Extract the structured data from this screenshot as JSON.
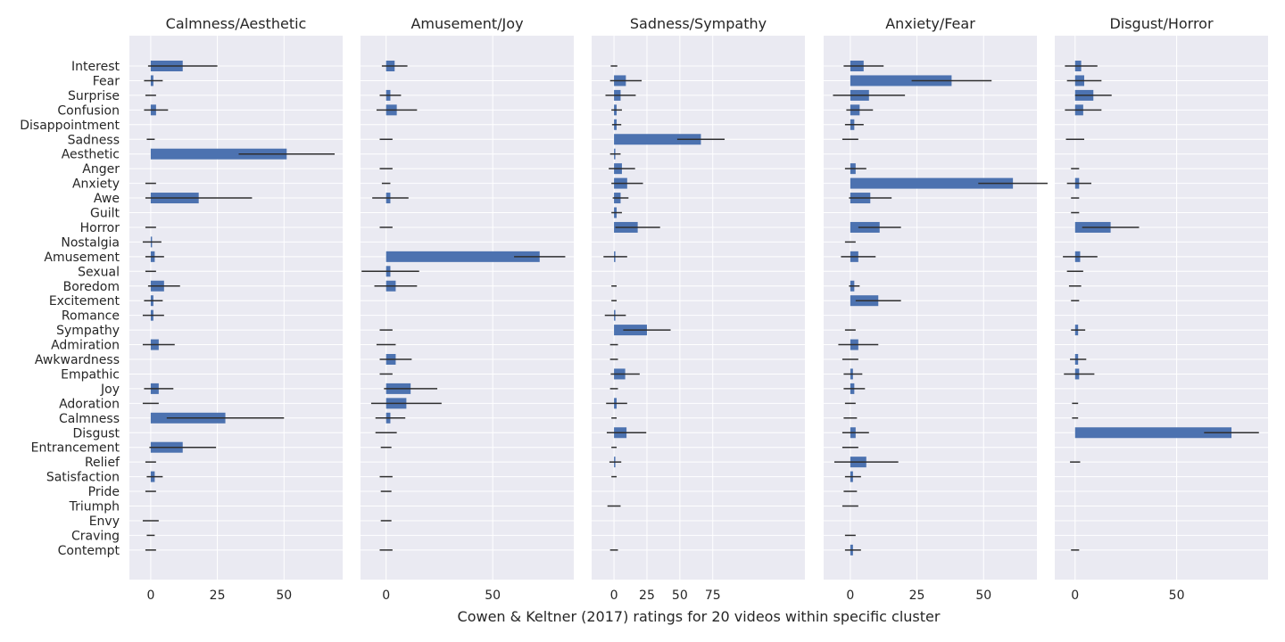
{
  "figure": {
    "xlabel": "Cowen & Keltner (2017) ratings for 20 videos within specific cluster",
    "categories": [
      "Interest",
      "Fear",
      "Surprise",
      "Confusion",
      "Disappointment",
      "Sadness",
      "Aesthetic",
      "Anger",
      "Anxiety",
      "Awe",
      "Guilt",
      "Horror",
      "Nostalgia",
      "Amusement",
      "Sexual",
      "Boredom",
      "Excitement",
      "Romance",
      "Sympathy",
      "Admiration",
      "Awkwardness",
      "Empathic",
      "Joy",
      "Adoration",
      "Calmness",
      "Disgust",
      "Entrancement",
      "Relief",
      "Satisfaction",
      "Pride",
      "Triumph",
      "Envy",
      "Craving",
      "Contempt"
    ]
  },
  "colors": {
    "bar": "#4c72b0",
    "panel": "#eaeaf2",
    "error": "#2f2f2f"
  },
  "chart_data": [
    {
      "type": "bar",
      "orientation": "horizontal",
      "title": "Calmness/Aesthetic",
      "xlim": [
        -8,
        72
      ],
      "xticks": [
        0,
        25,
        50
      ],
      "values": [
        12,
        1,
        0,
        2,
        0,
        0,
        51,
        0,
        0,
        18,
        0,
        0,
        0.5,
        1.5,
        0,
        5,
        1,
        1,
        0,
        3,
        0,
        0,
        3,
        0,
        28,
        0,
        12,
        0,
        1.5,
        0,
        0,
        0,
        0,
        0
      ],
      "errors": [
        13,
        3.5,
        2,
        4.5,
        0,
        1.5,
        18,
        0,
        2,
        20,
        0,
        2,
        3.5,
        3.5,
        2,
        6,
        3.5,
        4,
        0,
        6,
        0,
        0,
        5.5,
        3,
        22,
        0,
        12.5,
        2,
        3,
        2,
        0,
        3,
        1.5,
        2
      ]
    },
    {
      "type": "bar",
      "orientation": "horizontal",
      "title": "Amusement/Joy",
      "xlim": [
        -12,
        88
      ],
      "xticks": [
        0,
        50
      ],
      "values": [
        4,
        0,
        2,
        5,
        0,
        0,
        0,
        0,
        0,
        2,
        0,
        0,
        0,
        72,
        2,
        4.5,
        0,
        0,
        0,
        0,
        4.5,
        0,
        11.5,
        9.5,
        2,
        0,
        0,
        0,
        0,
        0,
        0,
        0,
        0,
        0
      ],
      "errors": [
        6,
        0,
        5,
        9.5,
        0,
        3,
        0,
        3,
        2,
        8.5,
        0,
        3,
        0,
        12,
        13.5,
        10,
        0,
        0,
        3,
        4.5,
        7.5,
        3,
        12.5,
        16.5,
        7,
        5,
        2.5,
        0,
        3,
        2.5,
        0,
        2.5,
        0,
        3
      ]
    },
    {
      "type": "bar",
      "orientation": "horizontal",
      "title": "Sadness/Sympathy",
      "xlim": [
        -17,
        145
      ],
      "xticks": [
        0,
        25,
        50,
        75
      ],
      "values": [
        0,
        9,
        5,
        2,
        2,
        66,
        1,
        6,
        10,
        5,
        2,
        18,
        0,
        1,
        0,
        0,
        0,
        1,
        25,
        0,
        0,
        8.5,
        0,
        2,
        0,
        9.5,
        0,
        1,
        0,
        0,
        0,
        0,
        0,
        0
      ],
      "errors": [
        2.5,
        12,
        11.5,
        4,
        3.5,
        18,
        4,
        10,
        12,
        6,
        4,
        17,
        0,
        9,
        0,
        2,
        2,
        8,
        18,
        3,
        3,
        11,
        3,
        8,
        2,
        15,
        2,
        4.5,
        2,
        0,
        5,
        0,
        0,
        3
      ]
    },
    {
      "type": "bar",
      "orientation": "horizontal",
      "title": "Anxiety/Fear",
      "xlim": [
        -10,
        70
      ],
      "xticks": [
        0,
        25,
        50,
        75
      ],
      "values": [
        5,
        38,
        7,
        3.5,
        1.5,
        0,
        0,
        2,
        61,
        7.5,
        0,
        11,
        0,
        3,
        0,
        1.5,
        10.5,
        0,
        0,
        3,
        0,
        1,
        1.5,
        0,
        0,
        2,
        0,
        6,
        1,
        0,
        0,
        0,
        0,
        1
      ],
      "errors": [
        7.5,
        15,
        13.5,
        5,
        3.5,
        3,
        0,
        4,
        13,
        8,
        0,
        8,
        2,
        6.5,
        0,
        2,
        8.5,
        0,
        2,
        7.5,
        3,
        3.5,
        4,
        2,
        2.5,
        5,
        3,
        12,
        3,
        2.5,
        3,
        0,
        2,
        3
      ]
    },
    {
      "type": "bar",
      "orientation": "horizontal",
      "title": "Disgust/Horror",
      "xlim": [
        -10,
        95
      ],
      "xticks": [
        0,
        50
      ],
      "values": [
        3,
        4.5,
        9,
        4,
        0,
        0,
        0,
        0,
        2,
        0,
        0,
        17.5,
        0,
        2.5,
        0,
        0,
        0,
        0,
        1.5,
        0,
        1.5,
        2,
        0,
        0,
        0,
        77,
        0,
        0,
        0,
        0,
        0,
        0,
        0,
        0
      ],
      "errors": [
        8,
        8.5,
        9,
        9,
        0,
        4.5,
        0,
        2,
        6,
        2,
        2,
        14,
        0,
        8.5,
        4,
        3,
        2,
        0,
        3.5,
        0,
        4,
        7.5,
        0,
        1.5,
        1.5,
        13.5,
        0,
        2.5,
        0,
        0,
        0,
        0,
        0,
        2
      ]
    }
  ]
}
